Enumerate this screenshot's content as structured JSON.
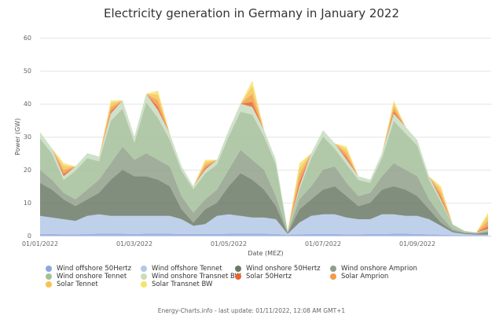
{
  "chart_data": {
    "type": "area",
    "stacked": true,
    "title": "Electricity generation in Germany in January 2022",
    "xlabel": "Date (MEZ)",
    "ylabel": "Power (GW)",
    "ylim": [
      0,
      60
    ],
    "yticks": [
      "0",
      "10",
      "20",
      "30",
      "40",
      "50",
      "60"
    ],
    "xticks": [
      "01/01/2022",
      "01/03/2022",
      "01/05/2022",
      "01/07/2022",
      "01/09/2022"
    ],
    "grid": true,
    "legend_position": "bottom",
    "x": [
      "2022-01-01 00:00",
      "2022-01-01 06:00",
      "2022-01-01 12:00",
      "2022-01-01 18:00",
      "2022-01-02 00:00",
      "2022-01-02 06:00",
      "2022-01-02 12:00",
      "2022-01-02 18:00",
      "2022-01-03 00:00",
      "2022-01-03 06:00",
      "2022-01-03 12:00",
      "2022-01-03 18:00",
      "2022-01-04 00:00",
      "2022-01-04 06:00",
      "2022-01-04 12:00",
      "2022-01-04 18:00",
      "2022-01-05 00:00",
      "2022-01-05 06:00",
      "2022-01-05 12:00",
      "2022-01-05 18:00",
      "2022-01-06 00:00",
      "2022-01-06 06:00",
      "2022-01-06 12:00",
      "2022-01-06 18:00",
      "2022-01-07 00:00",
      "2022-01-07 06:00",
      "2022-01-07 12:00",
      "2022-01-07 18:00",
      "2022-01-08 00:00",
      "2022-01-08 06:00",
      "2022-01-08 12:00",
      "2022-01-08 18:00",
      "2022-01-09 00:00",
      "2022-01-09 06:00",
      "2022-01-09 12:00",
      "2022-01-09 18:00",
      "2022-01-10 00:00",
      "2022-01-10 06:00",
      "2022-01-10 12:00"
    ],
    "series": [
      {
        "name": "Wind offshore 50Hertz",
        "color": "#8ea6dd",
        "values": [
          0.5,
          0.5,
          0.4,
          0.4,
          0.5,
          0.6,
          0.6,
          0.6,
          0.5,
          0.6,
          0.6,
          0.6,
          0.5,
          0.5,
          0.5,
          0.5,
          0.6,
          0.6,
          0.6,
          0.6,
          0.5,
          0.3,
          0.4,
          0.5,
          0.5,
          0.5,
          0.4,
          0.4,
          0.5,
          0.5,
          0.6,
          0.6,
          0.5,
          0.4,
          0.3,
          0.2,
          0.2,
          0.2,
          0.2
        ]
      },
      {
        "name": "Wind offshore Tennet",
        "color": "#b4c8e8",
        "values": [
          5.5,
          5,
          4.6,
          4.1,
          5.5,
          5.9,
          5.4,
          5.4,
          5.5,
          5.4,
          5.4,
          5.4,
          4.5,
          2.5,
          3,
          5.5,
          5.9,
          5.4,
          4.9,
          4.9,
          4.5,
          0.2,
          3.6,
          5.5,
          6,
          6,
          5.1,
          4.6,
          4.5,
          6,
          5.9,
          5.4,
          5.5,
          4.6,
          2.7,
          0.8,
          0.3,
          0.1,
          0.1
        ]
      },
      {
        "name": "Wind onshore 50Hertz",
        "color": "#6b7a66",
        "values": [
          10,
          8.5,
          6,
          4.5,
          5,
          6.5,
          11,
          14,
          12,
          12,
          11,
          9,
          3,
          1,
          4.5,
          4,
          8.5,
          13,
          11.5,
          8.5,
          4,
          0.3,
          4,
          5,
          7.5,
          8.5,
          6.5,
          4,
          5,
          7.5,
          8.5,
          8,
          6,
          3,
          1,
          0.5,
          0.3,
          0.3,
          0.7
        ]
      },
      {
        "name": "Wind onshore Amprion",
        "color": "#8fa08a",
        "values": [
          4,
          3,
          2,
          2,
          3,
          4,
          5,
          7,
          5,
          7,
          6,
          6,
          4,
          3,
          3,
          4,
          5,
          7,
          6,
          6,
          3,
          0.2,
          3,
          4,
          6,
          6,
          4,
          3,
          3,
          4,
          7,
          6,
          6,
          3,
          2,
          0.5,
          0.2,
          0.2,
          0.4
        ]
      },
      {
        "name": "Wind onshore Tennet",
        "color": "#a3c09a",
        "values": [
          9.5,
          7.9,
          3.9,
          8.7,
          9.5,
          5.6,
          12.8,
          11.5,
          5.2,
          15.4,
          12.7,
          8.1,
          7.7,
          7.1,
          7.8,
          7.6,
          10.1,
          11.6,
          13.7,
          10.1,
          9.6,
          0.4,
          3.1,
          8.5,
          10.1,
          5.3,
          5.6,
          4.9,
          3,
          5.5,
          12.8,
          11,
          9.3,
          5.9,
          4.3,
          1.3,
          0.4,
          0.1,
          0.5
        ]
      },
      {
        "name": "Wind onshore Transnet BW",
        "color": "#c8dcc0",
        "values": [
          1.9,
          1.6,
          1.1,
          1.3,
          1.5,
          1.4,
          2.2,
          2.5,
          1.8,
          2.6,
          2.3,
          1.9,
          1.3,
          0.9,
          1.2,
          1.4,
          1.9,
          2.4,
          2.3,
          1.9,
          1.4,
          0.1,
          0.9,
          1.5,
          1.9,
          1.7,
          1.4,
          1.1,
          1,
          1.5,
          2.2,
          2,
          1.7,
          1.1,
          0.7,
          0.2,
          0.1,
          0.1,
          0.1
        ]
      },
      {
        "name": "Solar 50Hertz",
        "color": "#e7642c",
        "values": [
          0,
          0,
          0.8,
          0,
          0,
          0,
          0.8,
          0,
          0,
          0,
          1.2,
          0,
          0,
          0,
          0.6,
          0,
          0,
          0,
          1.6,
          0,
          0,
          0,
          1.4,
          0,
          0,
          0,
          0.8,
          0,
          0,
          0,
          0.8,
          0,
          0,
          0,
          0.8,
          0,
          0,
          0,
          1
        ]
      },
      {
        "name": "Solar Amprion",
        "color": "#f19c47",
        "values": [
          0,
          0,
          1.2,
          0,
          0,
          0,
          1.2,
          0,
          0,
          0,
          1.8,
          0,
          0,
          0,
          0.9,
          0,
          0,
          0,
          2.4,
          0,
          0,
          0,
          2.1,
          0,
          0,
          0,
          1.2,
          0,
          0,
          0,
          1.2,
          0,
          0,
          0,
          1.2,
          0,
          0,
          0,
          1.5
        ]
      },
      {
        "name": "Solar Tennet",
        "color": "#f6c455",
        "values": [
          0,
          0,
          1.2,
          0,
          0,
          0,
          1.2,
          0,
          0,
          0,
          1.8,
          0,
          0,
          0,
          0.9,
          0,
          0,
          0,
          2.4,
          0,
          0,
          0,
          2.1,
          0,
          0,
          0,
          1.2,
          0,
          0,
          0,
          1.2,
          0,
          0,
          0,
          1.2,
          0,
          0,
          0,
          1.5
        ]
      },
      {
        "name": "Solar Transnet BW",
        "color": "#f8e36a",
        "values": [
          0,
          0,
          0.8,
          0,
          0,
          0,
          0.8,
          0,
          0,
          0,
          1.2,
          0,
          0,
          0,
          0.6,
          0,
          0,
          0,
          1.6,
          0,
          0,
          0,
          1.4,
          0,
          0,
          0,
          0.8,
          0,
          0,
          0,
          0.8,
          0,
          0,
          0,
          0.8,
          0,
          0,
          0,
          1
        ]
      }
    ]
  },
  "footer": "Energy-Charts.info - last update: 01/11/2022, 12:08 AM GMT+1"
}
